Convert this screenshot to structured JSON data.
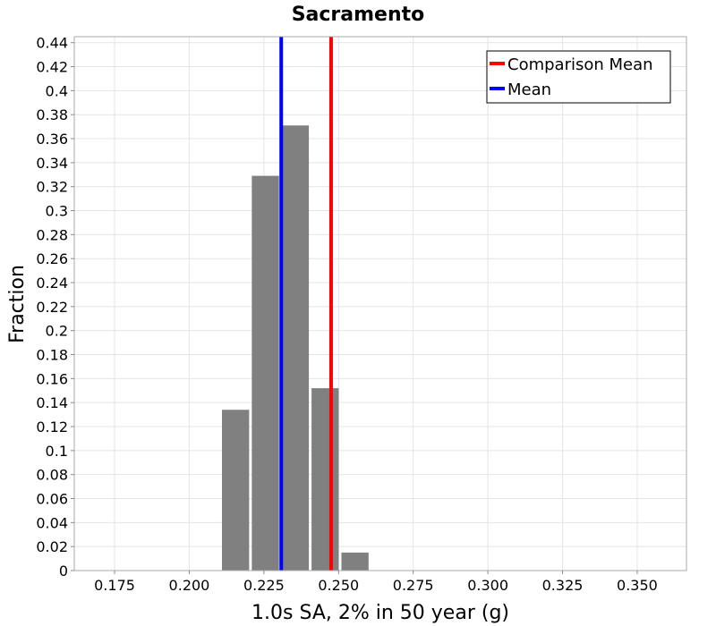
{
  "chart_data": {
    "type": "bar",
    "title": "Sacramento",
    "xlabel": "1.0s SA, 2% in 50 year (g)",
    "ylabel": "Fraction",
    "xlim": [
      0.1615,
      0.3665
    ],
    "ylim": [
      0,
      0.445
    ],
    "xticks": [
      "0.175",
      "0.200",
      "0.225",
      "0.250",
      "0.275",
      "0.300",
      "0.325",
      "0.350"
    ],
    "yticks": [
      "0",
      "0.02",
      "0.04",
      "0.06",
      "0.08",
      "0.1",
      "0.12",
      "0.14",
      "0.16",
      "0.18",
      "0.2",
      "0.22",
      "0.24",
      "0.26",
      "0.28",
      "0.3",
      "0.32",
      "0.34",
      "0.36",
      "0.38",
      "0.4",
      "0.42",
      "0.44"
    ],
    "grid": true,
    "bins": [
      {
        "x0": 0.2105,
        "x1": 0.2205,
        "value": 0.134
      },
      {
        "x0": 0.2205,
        "x1": 0.2305,
        "value": 0.329
      },
      {
        "x0": 0.2305,
        "x1": 0.2405,
        "value": 0.371
      },
      {
        "x0": 0.2405,
        "x1": 0.2505,
        "value": 0.152
      },
      {
        "x0": 0.2505,
        "x1": 0.2605,
        "value": 0.015
      }
    ],
    "bar_color": "#808080",
    "vlines": [
      {
        "name": "Comparison Mean",
        "x": 0.2475,
        "color": "#ff0000"
      },
      {
        "name": "Mean",
        "x": 0.2308,
        "color": "#0000ff"
      }
    ],
    "legend_position": "top-right"
  }
}
